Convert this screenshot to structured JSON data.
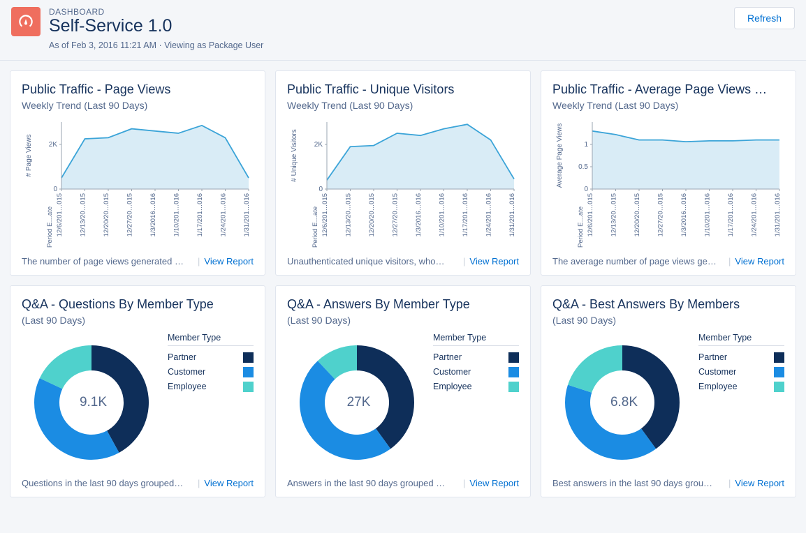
{
  "header": {
    "eyebrow": "DASHBOARD",
    "title": "Self-Service 1.0",
    "meta": "As of Feb 3, 2016 11:21 AM · Viewing as Package User",
    "refresh_label": "Refresh"
  },
  "colors": {
    "partner": "#0e2e59",
    "customer": "#1b8ce3",
    "employee": "#4fd1cc",
    "area_fill": "#d9ecf6",
    "area_stroke": "#3ba4d8",
    "axis": "#9aa5b1",
    "text": "#54698d"
  },
  "cards": [
    {
      "id": "pv",
      "title": "Public Traffic - Page Views",
      "subtitle": "Weekly Trend (Last 90 Days)",
      "chart": {
        "type": "area",
        "y_label": "# Page Views",
        "x_label": "Period E…ate",
        "y_ticks": [
          "0",
          "2K"
        ],
        "y_max": 3000,
        "x_ticks": [
          "12/6/201…015",
          "12/13/20…015",
          "12/20/20…015",
          "12/27/20…015",
          "1/3/2016…016",
          "1/10/201…016",
          "1/17/201…016",
          "1/24/201…016",
          "1/31/201…016"
        ],
        "values": [
          500,
          2250,
          2300,
          2700,
          2600,
          2500,
          2850,
          2300,
          500
        ]
      },
      "desc": "The number of page views generated …",
      "view_report": "View Report"
    },
    {
      "id": "uv",
      "title": "Public Traffic - Unique Visitors",
      "subtitle": "Weekly Trend (Last 90 Days)",
      "chart": {
        "type": "area",
        "y_label": "# Unique Visitors",
        "x_label": "Period E…ate",
        "y_ticks": [
          "0",
          "2K"
        ],
        "y_max": 3000,
        "x_ticks": [
          "12/6/201…015",
          "12/13/20…015",
          "12/20/20…015",
          "12/27/20…015",
          "1/3/2016…016",
          "1/10/201…016",
          "1/17/201…016",
          "1/24/201…016",
          "1/31/201…016"
        ],
        "values": [
          400,
          1900,
          1950,
          2500,
          2400,
          2700,
          2900,
          2200,
          450
        ]
      },
      "desc": "Unauthenticated unique visitors, who…",
      "view_report": "View Report"
    },
    {
      "id": "apv",
      "title": "Public Traffic - Average Page Views …",
      "subtitle": "Weekly Trend (Last 90 Days)",
      "chart": {
        "type": "area",
        "y_label": "Average Page Views",
        "x_label": "Period E…ate",
        "y_ticks": [
          "0",
          "0.5",
          "1"
        ],
        "y_max": 1.5,
        "x_ticks": [
          "12/6/201…015",
          "12/13/20…015",
          "12/20/20…015",
          "12/27/20…015",
          "1/3/2016…016",
          "1/10/201…016",
          "1/17/201…016",
          "1/24/201…016",
          "1/31/201…016"
        ],
        "values": [
          1.3,
          1.22,
          1.1,
          1.1,
          1.06,
          1.08,
          1.08,
          1.1,
          1.1
        ]
      },
      "desc": "The average number of page views ge…",
      "view_report": "View Report"
    },
    {
      "id": "qq",
      "title": "Q&A - Questions By Member Type",
      "subtitle": "(Last 90 Days)",
      "chart": {
        "type": "donut",
        "center": "9.1K",
        "legend_title": "Member Type",
        "series": [
          {
            "label": "Partner",
            "value": 42,
            "color_key": "partner"
          },
          {
            "label": "Customer",
            "value": 40,
            "color_key": "customer"
          },
          {
            "label": "Employee",
            "value": 18,
            "color_key": "employee"
          }
        ]
      },
      "desc": "Questions in the last 90 days grouped…",
      "view_report": "View Report"
    },
    {
      "id": "qa",
      "title": "Q&A - Answers By Member Type",
      "subtitle": "(Last 90 Days)",
      "chart": {
        "type": "donut",
        "center": "27K",
        "legend_title": "Member Type",
        "series": [
          {
            "label": "Partner",
            "value": 40,
            "color_key": "partner"
          },
          {
            "label": "Customer",
            "value": 48,
            "color_key": "customer"
          },
          {
            "label": "Employee",
            "value": 12,
            "color_key": "employee"
          }
        ]
      },
      "desc": "Answers in the last 90 days grouped …",
      "view_report": "View Report"
    },
    {
      "id": "qb",
      "title": "Q&A - Best Answers By Members",
      "subtitle": "(Last 90 Days)",
      "chart": {
        "type": "donut",
        "center": "6.8K",
        "legend_title": "Member Type",
        "series": [
          {
            "label": "Partner",
            "value": 40,
            "color_key": "partner"
          },
          {
            "label": "Customer",
            "value": 40,
            "color_key": "customer"
          },
          {
            "label": "Employee",
            "value": 20,
            "color_key": "employee"
          }
        ]
      },
      "desc": "Best answers in the last 90 days grou…",
      "view_report": "View Report"
    }
  ]
}
